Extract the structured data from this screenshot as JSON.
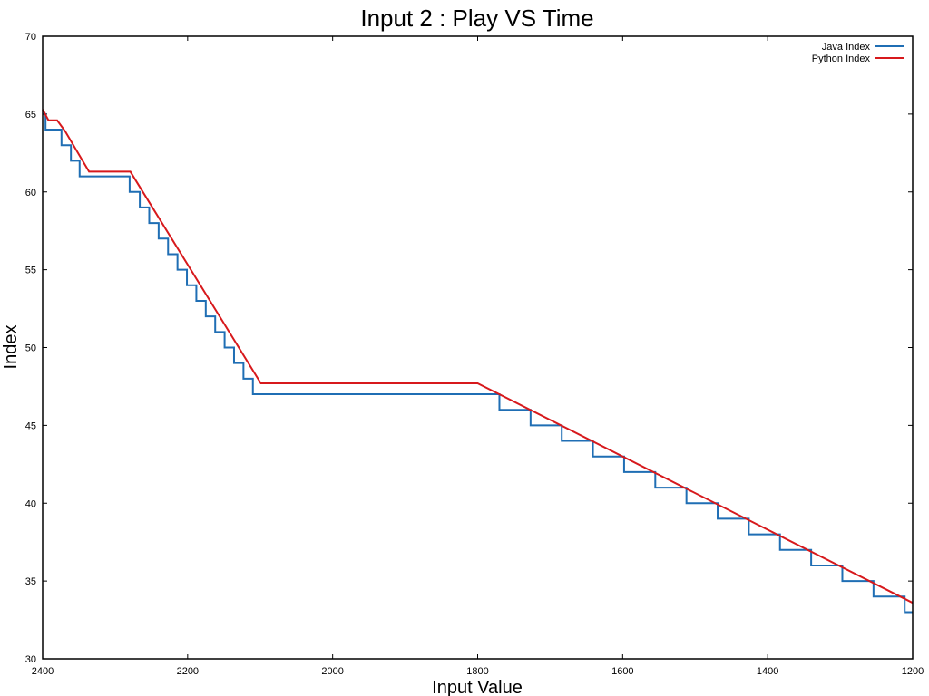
{
  "chart_data": {
    "type": "line",
    "title": "Input 2 : Play VS Time",
    "xlabel": "Input Value",
    "ylabel": "Index",
    "xlim": [
      2400,
      1200
    ],
    "ylim": [
      30,
      70
    ],
    "x_ticks": [
      2400,
      2200,
      2000,
      1800,
      1600,
      1400,
      1200
    ],
    "y_ticks": [
      30,
      35,
      40,
      45,
      50,
      55,
      60,
      65,
      70
    ],
    "x_tick_labels": [
      "2400",
      "2200",
      "2000",
      "1800",
      "1600",
      "1400",
      "1200"
    ],
    "y_tick_labels": [
      "30",
      "35",
      "40",
      "45",
      "50",
      "55",
      "60",
      "65",
      "70"
    ],
    "grid": false,
    "legend_position": "top-right",
    "series": [
      {
        "name": "Java Index",
        "color": "#1f6eb4",
        "step": true,
        "x": [
          2400,
          2396,
          2374,
          2361,
          2349,
          2280,
          2266,
          2253,
          2240,
          2227,
          2214,
          2201,
          2188,
          2175,
          2162,
          2149,
          2136,
          2123,
          2110,
          2097,
          1770,
          1727,
          1684,
          1641,
          1598,
          1555,
          1512,
          1469,
          1426,
          1383,
          1340,
          1297,
          1254,
          1211,
          1200
        ],
        "y": [
          65.0,
          64.0,
          63.0,
          62.0,
          61.0,
          60.0,
          59.0,
          58.0,
          57.0,
          56.0,
          55.0,
          54.0,
          53.0,
          52.0,
          51.0,
          50.0,
          49.0,
          48.0,
          47.0,
          47.0,
          46.0,
          45.0,
          44.0,
          43.0,
          42.0,
          41.0,
          40.0,
          39.0,
          38.0,
          37.0,
          36.0,
          35.0,
          34.0,
          33.0,
          33.0
        ]
      },
      {
        "name": "Python Index",
        "color": "#d7191c",
        "step": false,
        "x": [
          2400,
          2392,
          2380,
          2369,
          2336,
          2279,
          2099,
          1800,
          1200
        ],
        "y": [
          65.3,
          64.6,
          64.6,
          63.9,
          61.3,
          61.3,
          47.7,
          47.7,
          33.6
        ]
      }
    ]
  }
}
